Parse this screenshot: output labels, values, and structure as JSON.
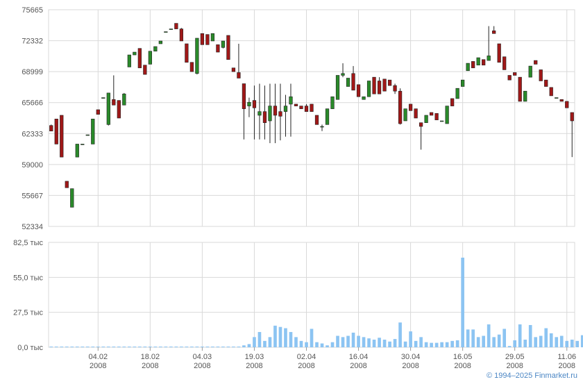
{
  "credit": "© 1994–2025 Finmarket.ru",
  "chart_data": [
    {
      "type": "candlestick",
      "y_tick_labels": [
        "75665",
        "72332",
        "68999",
        "65666",
        "62333",
        "59000",
        "55667",
        "52334"
      ],
      "y_ticks": [
        75665,
        72332,
        68999,
        65666,
        62333,
        59000,
        55667,
        52334
      ],
      "ylim": [
        52334,
        75665
      ],
      "grid": true,
      "x_tick_labels": [
        {
          "day": "04.02",
          "year": "2008",
          "pos": 9
        },
        {
          "day": "18.02",
          "year": "2008",
          "pos": 19
        },
        {
          "day": "04.03",
          "year": "2008",
          "pos": 29
        },
        {
          "day": "19.03",
          "year": "2008",
          "pos": 39
        },
        {
          "day": "02.04",
          "year": "2008",
          "pos": 49
        },
        {
          "day": "16.04",
          "year": "2008",
          "pos": 59
        },
        {
          "day": "30.04",
          "year": "2008",
          "pos": 69
        },
        {
          "day": "16.05",
          "year": "2008",
          "pos": 79
        },
        {
          "day": "29.05",
          "year": "2008",
          "pos": 89
        },
        {
          "day": "11.06",
          "year": "2008",
          "pos": 99
        }
      ],
      "up_color": "#2a8a2a",
      "down_color": "#a01818",
      "candles": [
        [
          63200,
          62600,
          63300,
          62600
        ],
        [
          63900,
          61200,
          63900,
          61200
        ],
        [
          64300,
          59800,
          64300,
          59800
        ],
        [
          57200,
          56500,
          57200,
          56500
        ],
        [
          54400,
          56400,
          54400,
          56400
        ],
        [
          59800,
          61200,
          61200,
          59800
        ],
        [
          61200,
          61200,
          61200,
          61200
        ],
        [
          62200,
          62200,
          62200,
          62200
        ],
        [
          61200,
          63900,
          63900,
          61200
        ],
        [
          64900,
          64400,
          64900,
          64400
        ],
        [
          66200,
          66200,
          66200,
          66200
        ],
        [
          63300,
          66700,
          66700,
          63200
        ],
        [
          66000,
          65400,
          68600,
          65400
        ],
        [
          65900,
          64000,
          65900,
          64000
        ],
        [
          65400,
          66600,
          66700,
          65400
        ],
        [
          69500,
          70800,
          70800,
          69500
        ],
        [
          70800,
          71100,
          71100,
          70800
        ],
        [
          71500,
          69400,
          71500,
          69400
        ],
        [
          69700,
          68700,
          69700,
          68700
        ],
        [
          69800,
          71200,
          71200,
          69800
        ],
        [
          71200,
          71700,
          71700,
          71200
        ],
        [
          72000,
          72300,
          72300,
          72000
        ],
        [
          73300,
          73300,
          73300,
          73300
        ],
        [
          73600,
          73600,
          73600,
          73600
        ],
        [
          74200,
          73600,
          74200,
          73600
        ],
        [
          73600,
          72300,
          73700,
          72300
        ],
        [
          72000,
          70000,
          72000,
          70000
        ],
        [
          70000,
          69000,
          70000,
          69000
        ],
        [
          68800,
          72600,
          72600,
          68700
        ],
        [
          73100,
          71900,
          73100,
          71900
        ],
        [
          73000,
          71900,
          73000,
          71900
        ],
        [
          72300,
          73100,
          73100,
          72300
        ],
        [
          71900,
          71100,
          71900,
          71100
        ],
        [
          71600,
          72300,
          72300,
          71500
        ],
        [
          72900,
          70300,
          72900,
          70300
        ],
        [
          69400,
          69000,
          69400,
          69000
        ],
        [
          68900,
          68300,
          72000,
          68300
        ],
        [
          67700,
          65000,
          67700,
          61700
        ],
        [
          65300,
          65700,
          66200,
          64100
        ],
        [
          65900,
          65100,
          67500,
          61700
        ],
        [
          64300,
          64700,
          67700,
          61700
        ],
        [
          64700,
          63500,
          67500,
          61700
        ],
        [
          63700,
          65300,
          67700,
          61300
        ],
        [
          65300,
          64300,
          67700,
          61300
        ],
        [
          64700,
          64200,
          67700,
          61600
        ],
        [
          64700,
          65300,
          66500,
          62000
        ],
        [
          65500,
          66300,
          67700,
          62000
        ],
        [
          65500,
          65300,
          65500,
          65300
        ],
        [
          65300,
          65000,
          65300,
          65000
        ],
        [
          65300,
          64700,
          65500,
          64700
        ],
        [
          65500,
          64700,
          65500,
          64700
        ],
        [
          64300,
          63300,
          64300,
          63300
        ],
        [
          63100,
          63100,
          63300,
          62600
        ],
        [
          63300,
          65000,
          65000,
          63300
        ],
        [
          65000,
          66300,
          66300,
          65000
        ],
        [
          66000,
          68600,
          68600,
          66000
        ],
        [
          68600,
          68800,
          69900,
          68400
        ],
        [
          67400,
          68300,
          68300,
          67400
        ],
        [
          68800,
          67000,
          69600,
          67000
        ],
        [
          67600,
          66300,
          67600,
          66300
        ],
        [
          66000,
          66300,
          66300,
          66000
        ],
        [
          66300,
          68000,
          68000,
          66300
        ],
        [
          68400,
          66600,
          68400,
          66600
        ],
        [
          68000,
          66600,
          68400,
          66600
        ],
        [
          68200,
          66900,
          68200,
          66900
        ],
        [
          68100,
          67500,
          68100,
          67500
        ],
        [
          67500,
          66900,
          67700,
          66600
        ],
        [
          66900,
          63400,
          67200,
          63300
        ],
        [
          63700,
          65000,
          65000,
          63700
        ],
        [
          65500,
          64800,
          65500,
          64800
        ],
        [
          65000,
          64000,
          65000,
          64000
        ],
        [
          63500,
          63100,
          63500,
          60600
        ],
        [
          63500,
          64300,
          64300,
          63500
        ],
        [
          64600,
          64300,
          64600,
          64300
        ],
        [
          64500,
          63800,
          64500,
          63800
        ],
        [
          63700,
          63700,
          63700,
          63700
        ],
        [
          63400,
          65300,
          65300,
          63400
        ],
        [
          66100,
          65300,
          66100,
          65300
        ],
        [
          66100,
          67200,
          67200,
          66100
        ],
        [
          67400,
          68100,
          68100,
          67400
        ],
        [
          69100,
          69900,
          69900,
          69100
        ],
        [
          70100,
          69400,
          70100,
          69400
        ],
        [
          69700,
          70500,
          70500,
          69700
        ],
        [
          70300,
          69700,
          70300,
          69700
        ],
        [
          70200,
          70700,
          73900,
          70200
        ],
        [
          73400,
          73100,
          73900,
          73100
        ],
        [
          72000,
          70000,
          72000,
          70000
        ],
        [
          70600,
          69200,
          70600,
          69200
        ],
        [
          68600,
          68100,
          68600,
          68100
        ],
        [
          68900,
          68600,
          68900,
          68600
        ],
        [
          68400,
          65800,
          68400,
          65800
        ],
        [
          65800,
          66900,
          66900,
          65800
        ],
        [
          68400,
          69600,
          69600,
          68400
        ],
        [
          70200,
          69800,
          70200,
          69800
        ],
        [
          69200,
          68000,
          69200,
          68000
        ],
        [
          68100,
          67400,
          68100,
          67400
        ],
        [
          67300,
          66400,
          67300,
          66400
        ],
        [
          66200,
          66200,
          66200,
          66200
        ],
        [
          66000,
          65800,
          66000,
          65800
        ],
        [
          65800,
          65100,
          65800,
          65100
        ],
        [
          64600,
          63700,
          64600,
          59800
        ]
      ]
    },
    {
      "type": "bar",
      "y_tick_labels": [
        "82,5 тыс",
        "55,0 тыс",
        "27,5 тыс",
        "0,0 тыс"
      ],
      "y_ticks": [
        82500,
        55000,
        27500,
        0
      ],
      "ylim": [
        0,
        82500
      ],
      "color": "#8cc4f2",
      "grid": true,
      "values": [
        500,
        500,
        500,
        500,
        500,
        500,
        500,
        500,
        500,
        500,
        500,
        500,
        500,
        500,
        500,
        500,
        500,
        500,
        500,
        500,
        500,
        500,
        500,
        500,
        500,
        500,
        500,
        500,
        500,
        500,
        500,
        500,
        500,
        500,
        500,
        500,
        500,
        1500,
        2500,
        8000,
        12000,
        5000,
        8000,
        17000,
        16000,
        15000,
        12000,
        8000,
        5000,
        4000,
        14500,
        4000,
        3000,
        1500,
        4000,
        9000,
        8000,
        9000,
        11500,
        9000,
        8000,
        7000,
        6000,
        7500,
        6000,
        4500,
        6500,
        19500,
        4500,
        12500,
        5000,
        8000,
        4000,
        3500,
        3500,
        4000,
        4000,
        5000,
        5500,
        70500,
        14000,
        14000,
        8000,
        9000,
        18000,
        8000,
        10000,
        14500,
        1000,
        5500,
        18000,
        6000,
        17500,
        8000,
        9000,
        15000,
        11000,
        8000,
        9000,
        5000,
        6000,
        5000,
        9500
      ]
    }
  ]
}
